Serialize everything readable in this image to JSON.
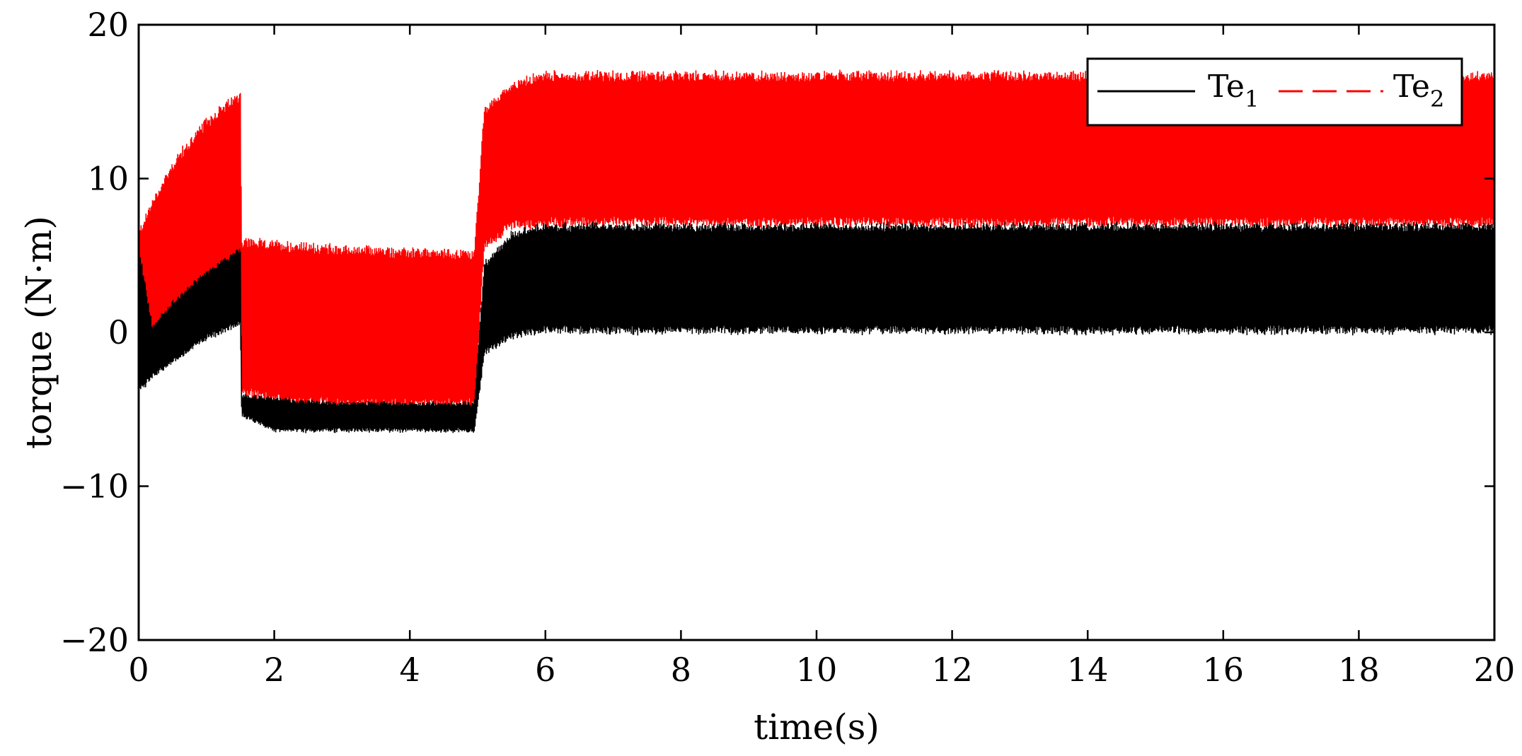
{
  "chart_data": {
    "type": "line",
    "title": "",
    "xlabel": "time(s)",
    "ylabel": "torque (N·m)",
    "xlim": [
      0,
      20
    ],
    "ylim": [
      -20,
      20
    ],
    "xticks": [
      0,
      2,
      4,
      6,
      8,
      10,
      12,
      14,
      16,
      18,
      20
    ],
    "yticks": [
      -20,
      -10,
      0,
      10,
      20
    ],
    "ytick_labels": [
      "−20",
      "−10",
      "0",
      "10",
      "20"
    ],
    "grid": false,
    "legend": {
      "placement": "top-right",
      "orientation": "horizontal"
    },
    "series": [
      {
        "name": "Te1",
        "label_base": "Te",
        "label_sub": "1",
        "color": "#000000",
        "style": "solid",
        "envelope": [
          {
            "x": 0.0,
            "lower": -4.0,
            "upper": 5.5
          },
          {
            "x": 0.2,
            "lower": -3.0,
            "upper": 0.5
          },
          {
            "x": 0.5,
            "lower": -2.0,
            "upper": 2.0
          },
          {
            "x": 1.0,
            "lower": -0.5,
            "upper": 4.0
          },
          {
            "x": 1.5,
            "lower": 0.5,
            "upper": 5.5
          },
          {
            "x": 1.52,
            "lower": -5.5,
            "upper": -4.0
          },
          {
            "x": 2.0,
            "lower": -6.5,
            "upper": -4.2
          },
          {
            "x": 3.0,
            "lower": -6.5,
            "upper": -4.5
          },
          {
            "x": 4.0,
            "lower": -6.5,
            "upper": -4.5
          },
          {
            "x": 4.95,
            "lower": -6.5,
            "upper": -4.5
          },
          {
            "x": 5.1,
            "lower": -1.5,
            "upper": 4.5
          },
          {
            "x": 5.5,
            "lower": -0.3,
            "upper": 6.5
          },
          {
            "x": 6.0,
            "lower": 0.0,
            "upper": 7.0
          },
          {
            "x": 20.0,
            "lower": 0.0,
            "upper": 7.0
          }
        ]
      },
      {
        "name": "Te2",
        "label_base": "Te",
        "label_sub": "2",
        "color": "#ff0000",
        "style": "dashed",
        "envelope": [
          {
            "x": 0.0,
            "lower": -2.0,
            "upper": 6.5
          },
          {
            "x": 0.2,
            "lower": -1.5,
            "upper": 8.5
          },
          {
            "x": 0.5,
            "lower": 0.0,
            "upper": 11.0
          },
          {
            "x": 1.0,
            "lower": 2.0,
            "upper": 13.8
          },
          {
            "x": 1.5,
            "lower": 4.0,
            "upper": 15.5
          },
          {
            "x": 1.52,
            "lower": -4.0,
            "upper": 6.0
          },
          {
            "x": 2.0,
            "lower": -4.5,
            "upper": 5.8
          },
          {
            "x": 3.0,
            "lower": -4.8,
            "upper": 5.5
          },
          {
            "x": 4.0,
            "lower": -4.8,
            "upper": 5.3
          },
          {
            "x": 4.95,
            "lower": -4.8,
            "upper": 5.2
          },
          {
            "x": 5.1,
            "lower": 5.5,
            "upper": 14.5
          },
          {
            "x": 5.5,
            "lower": 6.8,
            "upper": 16.2
          },
          {
            "x": 6.0,
            "lower": 7.0,
            "upper": 16.8
          },
          {
            "x": 20.0,
            "lower": 7.0,
            "upper": 16.8
          }
        ]
      }
    ]
  }
}
